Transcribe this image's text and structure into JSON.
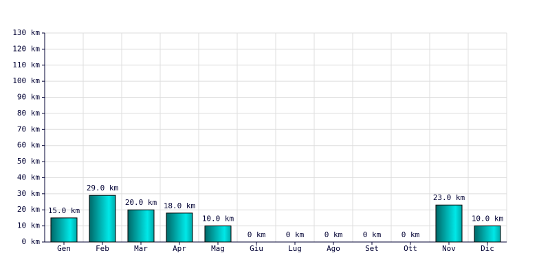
{
  "chart_data": {
    "type": "bar",
    "categories": [
      "Gen",
      "Feb",
      "Mar",
      "Apr",
      "Mag",
      "Giu",
      "Lug",
      "Ago",
      "Set",
      "Ott",
      "Nov",
      "Dic"
    ],
    "values": [
      15,
      29,
      20,
      18,
      10,
      0,
      0,
      0,
      0,
      0,
      23,
      10
    ],
    "value_labels": [
      "15.0 km",
      "29.0 km",
      "20.0 km",
      "18.0 km",
      "10.0 km",
      "0 km",
      "0 km",
      "0 km",
      "0 km",
      "0 km",
      "23.0 km",
      "10.0 km"
    ],
    "color": "#00e8e8",
    "ylim": [
      0,
      130
    ],
    "yticks": [
      {
        "value": 0,
        "label": "0 km"
      },
      {
        "value": 10,
        "label": "10 km"
      },
      {
        "value": 20,
        "label": "20 km"
      },
      {
        "value": 30,
        "label": "30 km"
      },
      {
        "value": 40,
        "label": "40 km"
      },
      {
        "value": 50,
        "label": "50 km"
      },
      {
        "value": 60,
        "label": "60 km"
      },
      {
        "value": 70,
        "label": "70 km"
      },
      {
        "value": 80,
        "label": "80 km"
      },
      {
        "value": 90,
        "label": "90 km"
      },
      {
        "value": 100,
        "label": "100 km"
      },
      {
        "value": 110,
        "label": "110 km"
      },
      {
        "value": 120,
        "label": "120 km"
      },
      {
        "value": 130,
        "label": "130 km"
      }
    ],
    "grid": true
  }
}
